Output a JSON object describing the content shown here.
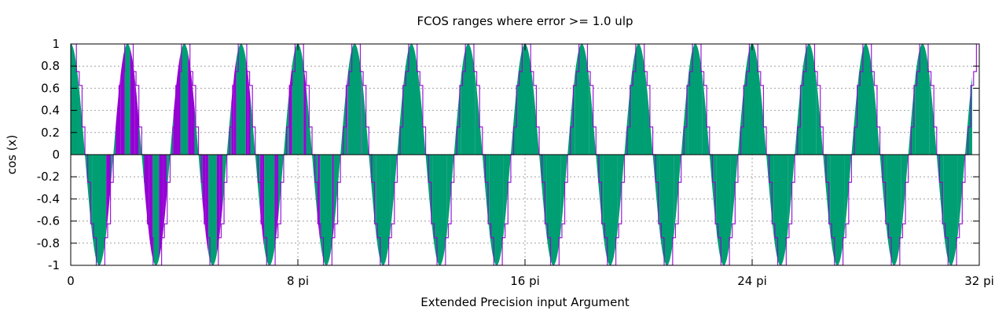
{
  "chart_data": {
    "type": "area",
    "title": "FCOS ranges where error >= 1.0 ulp",
    "xlabel": "Extended Precision input Argument",
    "ylabel": "cos (x)",
    "xlim": [
      0,
      32
    ],
    "x_unit": "pi",
    "ylim": [
      -1,
      1
    ],
    "x_ticks": [
      0,
      8,
      16,
      24,
      32
    ],
    "x_tick_labels": [
      "0",
      "8 pi",
      "16 pi",
      "24 pi",
      "32 pi"
    ],
    "y_ticks": [
      1,
      0.8,
      0.6,
      0.4,
      0.2,
      0,
      -0.2,
      -0.4,
      -0.6,
      -0.8,
      -1
    ],
    "y_tick_labels": [
      "1",
      "0.8",
      "0.6",
      "0.4",
      "0.2",
      "0",
      "-0.2",
      "-0.4",
      "-0.6",
      "-0.8",
      "-1"
    ],
    "grid": true,
    "series": [
      {
        "function": "cos(x)",
        "color": "#009e73",
        "description_of_values": "filled cos curve over full range"
      },
      {
        "color": "#9400d3",
        "description_of_values": "error >= 1.0 ulp ranges; grows with argument"
      }
    ],
    "error_ranges_start_pi": [
      0.3,
      0.9,
      1.5,
      2.1,
      2.7,
      3.3,
      3.9,
      4.5,
      5.05,
      5.6,
      6.2,
      6.75,
      7.3,
      7.9,
      8.45,
      9.0,
      9.6,
      10.15,
      10.7,
      11.3,
      11.85,
      12.4,
      12.95,
      13.5,
      14.05
    ]
  }
}
